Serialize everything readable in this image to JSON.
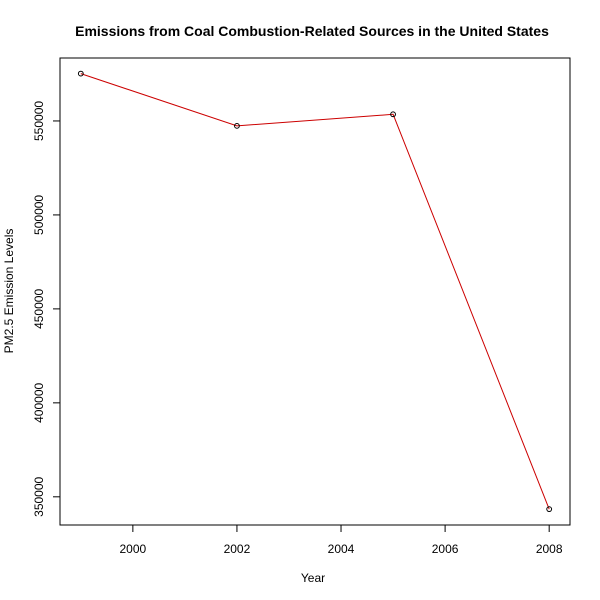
{
  "colors": {
    "line": "#cc0000",
    "point": "#000000",
    "axis": "#000000",
    "background": "#ffffff"
  },
  "chart_data": {
    "type": "line",
    "title": "Emissions from Coal Combustion-Related Sources in the United States",
    "xlabel": "Year",
    "ylabel": "PM2.5 Emission Levels",
    "x": [
      1999,
      2002,
      2005,
      2008
    ],
    "series": [
      {
        "values": [
          575200,
          547380,
          553550,
          343430
        ]
      }
    ],
    "xlim": [
      1998.6,
      2008.4
    ],
    "ylim": [
      335000,
      583500
    ],
    "x_ticks": [
      2000,
      2002,
      2004,
      2006,
      2008
    ],
    "x_tick_labels": [
      "2000",
      "2002",
      "2004",
      "2006",
      "2008"
    ],
    "y_ticks": [
      350000,
      400000,
      450000,
      500000,
      550000
    ],
    "y_tick_labels": [
      "350000",
      "400000",
      "450000",
      "500000",
      "550000"
    ],
    "grid": false,
    "legend": "none",
    "markers": "open-circle"
  }
}
